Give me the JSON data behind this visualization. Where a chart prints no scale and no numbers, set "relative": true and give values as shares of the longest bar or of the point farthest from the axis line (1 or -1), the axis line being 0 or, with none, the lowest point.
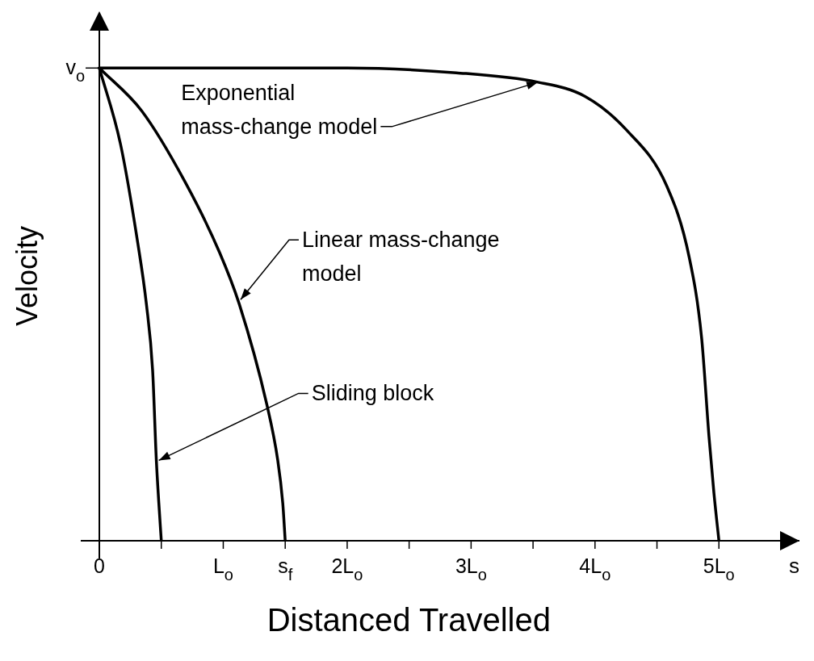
{
  "chart_data": {
    "type": "line",
    "relative": true,
    "xlabel": "Distanced Travelled",
    "ylabel": "Velocity",
    "xlim": [
      -0.15,
      5.65
    ],
    "xticks": [
      {
        "value": 0,
        "label": "0"
      },
      {
        "value": 0.5,
        "label": null
      },
      {
        "value": 1,
        "label": "L$_{o}$"
      },
      {
        "value": 1.5,
        "label": "s$_{f}$"
      },
      {
        "value": 2,
        "label": "2L$_{o}$"
      },
      {
        "value": 2.5,
        "label": null
      },
      {
        "value": 3,
        "label": "3L$_{o}$"
      },
      {
        "value": 3.5,
        "label": null
      },
      {
        "value": 4,
        "label": "4L$_{o}$"
      },
      {
        "value": 4.5,
        "label": null
      },
      {
        "value": 5,
        "label": "5L$_{o}$"
      }
    ],
    "legend": false,
    "marker": "none",
    "line_style": "solid",
    "series": [
      {
        "color": "#000000",
        "x": [
          0,
          0.17,
          0.31,
          0.38,
          0.43,
          0.46,
          0.48,
          0.5
        ],
        "values": [
          1,
          0.84,
          0.63,
          0.5,
          0.36,
          0.17,
          0.08,
          0
        ]
      },
      {
        "color": "#000000",
        "x": [
          0,
          0.34,
          0.69,
          0.97,
          1.13,
          1.35,
          1.44,
          1.48,
          1.5
        ],
        "values": [
          1,
          0.91,
          0.76,
          0.61,
          0.5,
          0.29,
          0.17,
          0.08,
          0
        ]
      },
      {
        "color": "#000000",
        "x": [
          0,
          2,
          2.88,
          3.54,
          3.92,
          4.25,
          4.58,
          4.76,
          4.86,
          4.92,
          4.96,
          5
        ],
        "values": [
          1,
          1,
          0.99,
          0.97,
          0.94,
          0.87,
          0.75,
          0.6,
          0.43,
          0.22,
          0.1,
          0
        ]
      }
    ],
    "annotations": [
      {
        "text": "Exponential\nmass-change model",
        "x": 3.54,
        "y": 0.97
      },
      {
        "text": "Linear mass-change\nmodel",
        "x": 1.14,
        "y": 0.51
      },
      {
        "text": "Sliding block",
        "x": 0.48,
        "y": 0.17
      },
      "s",
      "v$_{o}$"
    ]
  }
}
